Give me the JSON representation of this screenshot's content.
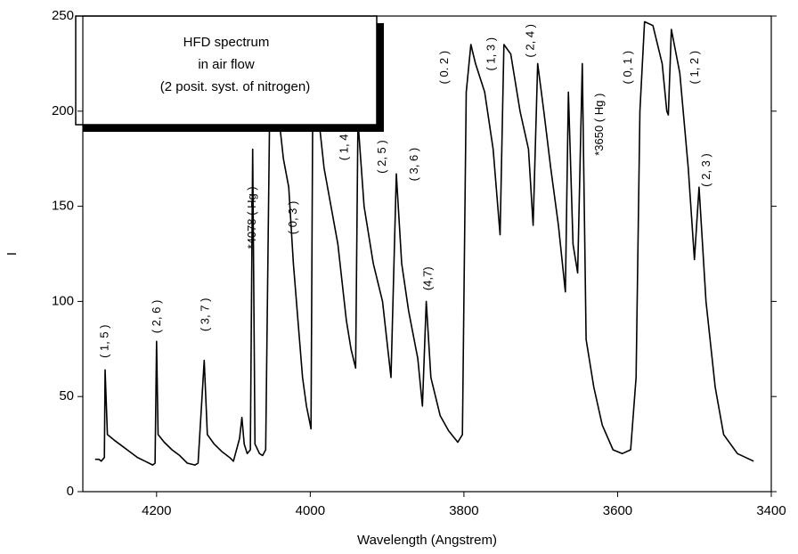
{
  "chart_data": {
    "type": "line",
    "x_label": "Wavelength (Angstrem)",
    "y_label": "I",
    "box_text": [
      "HFD spectrum",
      "in air flow",
      "(2 posit. syst. of nitrogen)"
    ],
    "xlim": [
      4296,
      3400
    ],
    "ylim": [
      0,
      250
    ],
    "xticks": [
      4200,
      4000,
      3800,
      3600,
      3400
    ],
    "yticks": [
      0,
      50,
      100,
      150,
      200,
      250
    ],
    "series": [
      {
        "name": "HFD spectrum",
        "color": "#000000",
        "x": [
          4280,
          4275,
          4272,
          4270,
          4268,
          4267,
          4264,
          4255,
          4245,
          4235,
          4225,
          4215,
          4205,
          4202,
          4200,
          4198,
          4190,
          4180,
          4170,
          4160,
          4150,
          4146,
          4138,
          4134,
          4125,
          4115,
          4105,
          4100,
          4092,
          4089,
          4086,
          4082,
          4078,
          4075,
          4072,
          4066,
          4062,
          4058,
          4053,
          4050,
          4039,
          4035,
          4028,
          4022,
          4010,
          4005,
          4000,
          3999,
          3997,
          3990,
          3982,
          3964,
          3953,
          3947,
          3941,
          3938,
          3930,
          3918,
          3906,
          3895,
          3888,
          3881,
          3872,
          3860,
          3854,
          3849,
          3843,
          3831,
          3820,
          3808,
          3802,
          3797,
          3791,
          3785,
          3773,
          3762,
          3753,
          3748,
          3739,
          3727,
          3716,
          3710,
          3704,
          3696,
          3687,
          3677,
          3668,
          3664,
          3658,
          3652,
          3646,
          3641,
          3631,
          3620,
          3606,
          3594,
          3583,
          3576,
          3571,
          3565,
          3554,
          3542,
          3536,
          3534,
          3530,
          3519,
          3508,
          3500,
          3494,
          3485,
          3473,
          3462,
          3444,
          3423
        ],
        "values": [
          17,
          17,
          16,
          17,
          18,
          64,
          30,
          27,
          24,
          21,
          18,
          16,
          14,
          15,
          79,
          30,
          26,
          22,
          19,
          15,
          14,
          15,
          69,
          30,
          25,
          21,
          18,
          16,
          28,
          39,
          25,
          20,
          22,
          180,
          25,
          20,
          19,
          22,
          193,
          230,
          190,
          175,
          160,
          120,
          60,
          45,
          35,
          33,
          190,
          200,
          170,
          130,
          90,
          75,
          65,
          195,
          150,
          120,
          100,
          60,
          167,
          120,
          95,
          70,
          45,
          100,
          60,
          40,
          32,
          26,
          30,
          210,
          235,
          225,
          210,
          180,
          135,
          235,
          230,
          200,
          180,
          140,
          225,
          200,
          170,
          140,
          105,
          210,
          130,
          115,
          225,
          80,
          55,
          35,
          22,
          20,
          22,
          60,
          200,
          247,
          245,
          225,
          200,
          198,
          243,
          220,
          170,
          122,
          160,
          100,
          55,
          30,
          20,
          16
        ]
      }
    ],
    "annotations": [
      {
        "text": "( 1, 5 )",
        "x": 4267,
        "y": 79
      },
      {
        "text": "( 2, 6 )",
        "x": 4199,
        "y": 92
      },
      {
        "text": "( 3, 7 )",
        "x": 4136,
        "y": 93
      },
      {
        "text": "*4078 ( Hg )",
        "x": 4075,
        "y": 144
      },
      {
        "text": "( 0, 3 )",
        "x": 4022,
        "y": 144
      },
      {
        "text": "( 1, 4",
        "x": 3955,
        "y": 181
      },
      {
        "text": "( 2, 5 )",
        "x": 3906,
        "y": 176
      },
      {
        "text": "( 3, 6 )",
        "x": 3864,
        "y": 172
      },
      {
        "text": "(4,7)",
        "x": 3846,
        "y": 112
      },
      {
        "text": "( 0. 2 )",
        "x": 3825,
        "y": 223
      },
      {
        "text": "( 1, 3 )",
        "x": 3764,
        "y": 230
      },
      {
        "text": "( 2, 4 )",
        "x": 3713,
        "y": 237
      },
      {
        "text": "*3650 ( Hg )",
        "x": 3623,
        "y": 193
      },
      {
        "text": "( 0, 1 )",
        "x": 3586,
        "y": 223
      },
      {
        "text": "( 1, 2 )",
        "x": 3499,
        "y": 223
      },
      {
        "text": "( 2, 3 )",
        "x": 3484,
        "y": 169
      }
    ]
  }
}
